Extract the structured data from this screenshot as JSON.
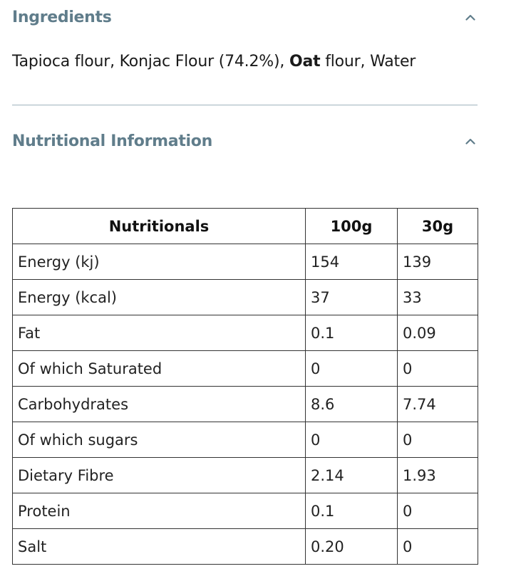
{
  "ingredients": {
    "title": "Ingredients",
    "text_part1": "Tapioca flour, Konjac Flour (74.2%), ",
    "text_bold": "Oat",
    "text_part2": " flour, Water",
    "toggle_icon": "chevron-up-icon"
  },
  "nutrition": {
    "title": "Nutritional Information",
    "toggle_icon": "chevron-up-icon",
    "table": {
      "headers": [
        "Nutritionals",
        "100g",
        "30g"
      ],
      "rows": [
        [
          "Energy (kj)",
          "154",
          "139"
        ],
        [
          "Energy (kcal)",
          "37",
          "33"
        ],
        [
          "Fat",
          "0.1",
          "0.09"
        ],
        [
          "Of which Saturated",
          "0",
          "0"
        ],
        [
          "Carbohydrates",
          "8.6",
          "7.74"
        ],
        [
          "Of which sugars",
          "0",
          "0"
        ],
        [
          "Dietary Fibre",
          "2.14",
          "1.93"
        ],
        [
          "Protein",
          "0.1",
          "0"
        ],
        [
          "Salt",
          "0.20",
          "0"
        ]
      ]
    }
  },
  "colors": {
    "section_title": "#607d8b",
    "divider": "#9fb3bc",
    "table_border": "#333333"
  }
}
